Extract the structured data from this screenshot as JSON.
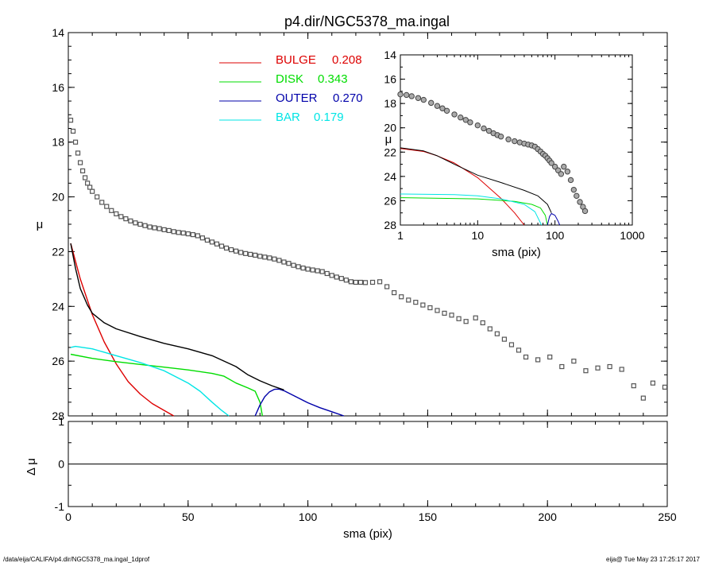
{
  "title": "p4.dir/NGC5378_ma.ingal",
  "footer": {
    "left": "/data/eija/CALIFA/p4.dir/NGC5378_ma.ingal_1dprof",
    "right": "eija@  Tue May 23 17:25:17 2017"
  },
  "legend": [
    {
      "name": "BULGE",
      "value": "0.208",
      "color": "#dd0000"
    },
    {
      "name": "DISK",
      "value": "0.343",
      "color": "#00dd00"
    },
    {
      "name": "OUTER",
      "value": "0.270",
      "color": "#0000aa"
    },
    {
      "name": "BAR",
      "value": "0.179",
      "color": "#00e5e5"
    }
  ],
  "chart_data": [
    {
      "type": "line",
      "panel": "main",
      "xlabel": "sma (pix)",
      "ylabel": "μ",
      "xlim": [
        0,
        250
      ],
      "ylim": [
        28,
        14
      ],
      "x_ticks": [
        "0",
        "50",
        "100",
        "150",
        "200",
        "250"
      ],
      "y_ticks": [
        "14",
        "16",
        "18",
        "20",
        "22",
        "24",
        "26",
        "28"
      ],
      "observed_points": [
        [
          1,
          17.2
        ],
        [
          2,
          17.6
        ],
        [
          3,
          18.0
        ],
        [
          4,
          18.4
        ],
        [
          5,
          18.75
        ],
        [
          6,
          19.05
        ],
        [
          7,
          19.3
        ],
        [
          8,
          19.5
        ],
        [
          9,
          19.65
        ],
        [
          10,
          19.8
        ],
        [
          12,
          20.0
        ],
        [
          14,
          20.2
        ],
        [
          16,
          20.35
        ],
        [
          18,
          20.5
        ],
        [
          20,
          20.62
        ],
        [
          22,
          20.72
        ],
        [
          24,
          20.8
        ],
        [
          26,
          20.88
        ],
        [
          28,
          20.95
        ],
        [
          30,
          21.0
        ],
        [
          32,
          21.05
        ],
        [
          34,
          21.1
        ],
        [
          36,
          21.13
        ],
        [
          38,
          21.16
        ],
        [
          40,
          21.2
        ],
        [
          42,
          21.23
        ],
        [
          44,
          21.27
        ],
        [
          46,
          21.3
        ],
        [
          48,
          21.32
        ],
        [
          50,
          21.35
        ],
        [
          52,
          21.38
        ],
        [
          54,
          21.42
        ],
        [
          56,
          21.5
        ],
        [
          58,
          21.58
        ],
        [
          60,
          21.65
        ],
        [
          62,
          21.72
        ],
        [
          64,
          21.8
        ],
        [
          66,
          21.87
        ],
        [
          68,
          21.93
        ],
        [
          70,
          21.98
        ],
        [
          72,
          22.03
        ],
        [
          74,
          22.07
        ],
        [
          76,
          22.1
        ],
        [
          78,
          22.13
        ],
        [
          80,
          22.17
        ],
        [
          82,
          22.2
        ],
        [
          84,
          22.23
        ],
        [
          86,
          22.27
        ],
        [
          88,
          22.32
        ],
        [
          90,
          22.38
        ],
        [
          92,
          22.43
        ],
        [
          94,
          22.5
        ],
        [
          96,
          22.55
        ],
        [
          98,
          22.6
        ],
        [
          100,
          22.64
        ],
        [
          102,
          22.67
        ],
        [
          104,
          22.7
        ],
        [
          106,
          22.73
        ],
        [
          108,
          22.8
        ],
        [
          110,
          22.87
        ],
        [
          112,
          22.93
        ],
        [
          114,
          22.98
        ],
        [
          116,
          23.04
        ],
        [
          118,
          23.1
        ],
        [
          120,
          23.12
        ],
        [
          122,
          23.12
        ],
        [
          124,
          23.13
        ],
        [
          127,
          23.12
        ],
        [
          130,
          23.1
        ],
        [
          133,
          23.28
        ],
        [
          136,
          23.5
        ],
        [
          139,
          23.65
        ],
        [
          142,
          23.77
        ],
        [
          145,
          23.85
        ],
        [
          148,
          23.95
        ],
        [
          151,
          24.05
        ],
        [
          154,
          24.15
        ],
        [
          157,
          24.25
        ],
        [
          160,
          24.32
        ],
        [
          163,
          24.45
        ],
        [
          166,
          24.55
        ],
        [
          170,
          24.42
        ],
        [
          173,
          24.6
        ],
        [
          176,
          24.82
        ],
        [
          179,
          25.0
        ],
        [
          182,
          25.2
        ],
        [
          185,
          25.4
        ],
        [
          188,
          25.6
        ],
        [
          191,
          25.85
        ],
        [
          196,
          25.95
        ],
        [
          201,
          25.85
        ],
        [
          206,
          26.2
        ],
        [
          211,
          26.0
        ],
        [
          216,
          26.35
        ],
        [
          221,
          26.25
        ],
        [
          226,
          26.2
        ],
        [
          231,
          26.3
        ],
        [
          236,
          26.9
        ],
        [
          240,
          27.35
        ],
        [
          244,
          26.8
        ],
        [
          249,
          26.95
        ]
      ],
      "series": [
        {
          "name": "BULGE",
          "x": [
            1,
            5,
            10,
            15,
            20,
            25,
            30,
            35,
            40,
            44
          ],
          "y": [
            21.7,
            23.0,
            24.3,
            25.3,
            26.1,
            26.75,
            27.2,
            27.55,
            27.8,
            28.0
          ]
        },
        {
          "name": "DISK",
          "x": [
            1,
            10,
            20,
            30,
            40,
            50,
            60,
            65,
            70,
            75,
            78,
            80,
            81
          ],
          "y": [
            25.75,
            25.9,
            26.02,
            26.12,
            26.22,
            26.32,
            26.45,
            26.55,
            26.8,
            26.98,
            27.1,
            27.5,
            28.0
          ]
        },
        {
          "name": "OUTER",
          "x": [
            78,
            80,
            82,
            84,
            86,
            88,
            90,
            95,
            100,
            105,
            110,
            115
          ],
          "y": [
            28.0,
            27.6,
            27.3,
            27.12,
            27.03,
            27.02,
            27.08,
            27.3,
            27.52,
            27.7,
            27.85,
            28.0
          ]
        },
        {
          "name": "BAR",
          "x": [
            1,
            3,
            10,
            20,
            30,
            40,
            50,
            55,
            60,
            64,
            67
          ],
          "y": [
            25.5,
            25.46,
            25.55,
            25.8,
            26.05,
            26.35,
            26.8,
            27.1,
            27.5,
            27.8,
            28.0
          ]
        },
        {
          "name": "",
          "x": [
            1,
            3,
            5,
            8,
            10,
            15,
            20,
            30,
            40,
            50,
            60,
            70,
            75,
            80,
            85,
            90
          ],
          "y": [
            21.7,
            22.6,
            23.35,
            23.95,
            24.25,
            24.6,
            24.82,
            25.1,
            25.35,
            25.55,
            25.8,
            26.2,
            26.5,
            26.72,
            26.9,
            27.05
          ]
        }
      ]
    },
    {
      "type": "line",
      "panel": "residual",
      "xlabel": "",
      "ylabel": "Δ μ",
      "xlim": [
        0,
        250
      ],
      "ylim": [
        -1,
        1
      ],
      "y_ticks": [
        "1",
        "0",
        "-1"
      ],
      "series": [
        {
          "name": "",
          "x": [
            0,
            250
          ],
          "y": [
            0,
            0
          ]
        }
      ]
    },
    {
      "type": "line",
      "panel": "inset",
      "xscale": "log",
      "xlabel": "sma (pix)",
      "ylabel": "μ",
      "xlim": [
        1,
        1000
      ],
      "ylim": [
        28,
        14
      ],
      "x_ticks": [
        "1",
        "10",
        "100",
        "1000"
      ],
      "y_ticks": [
        "14",
        "16",
        "18",
        "20",
        "22",
        "24",
        "26",
        "28"
      ],
      "observed_points": [
        [
          1,
          17.25
        ],
        [
          1.2,
          17.3
        ],
        [
          1.4,
          17.4
        ],
        [
          1.7,
          17.55
        ],
        [
          2,
          17.7
        ],
        [
          2.5,
          17.95
        ],
        [
          3,
          18.2
        ],
        [
          3.5,
          18.4
        ],
        [
          4,
          18.6
        ],
        [
          5,
          18.9
        ],
        [
          6,
          19.15
        ],
        [
          7,
          19.35
        ],
        [
          8,
          19.55
        ],
        [
          10,
          19.8
        ],
        [
          12,
          20.05
        ],
        [
          14,
          20.25
        ],
        [
          16,
          20.45
        ],
        [
          18,
          20.6
        ],
        [
          20,
          20.72
        ],
        [
          25,
          20.95
        ],
        [
          30,
          21.1
        ],
        [
          35,
          21.2
        ],
        [
          40,
          21.3
        ],
        [
          45,
          21.38
        ],
        [
          50,
          21.45
        ],
        [
          55,
          21.55
        ],
        [
          60,
          21.75
        ],
        [
          65,
          21.95
        ],
        [
          70,
          22.15
        ],
        [
          75,
          22.3
        ],
        [
          80,
          22.5
        ],
        [
          85,
          22.7
        ],
        [
          90,
          22.9
        ],
        [
          100,
          23.2
        ],
        [
          110,
          23.5
        ],
        [
          120,
          23.8
        ],
        [
          130,
          23.2
        ],
        [
          145,
          23.6
        ],
        [
          160,
          24.3
        ],
        [
          175,
          25.1
        ],
        [
          190,
          25.6
        ],
        [
          210,
          26.1
        ],
        [
          230,
          26.5
        ],
        [
          245,
          26.85
        ]
      ],
      "series": [
        {
          "name": "BULGE",
          "x": [
            1,
            2,
            3,
            5,
            10,
            20,
            30,
            40
          ],
          "y": [
            21.7,
            21.95,
            22.3,
            22.9,
            24.1,
            25.8,
            27.0,
            28.0
          ]
        },
        {
          "name": "DISK",
          "x": [
            1,
            10,
            30,
            50,
            65,
            75,
            80
          ],
          "y": [
            25.75,
            25.85,
            26.05,
            26.3,
            26.6,
            27.2,
            28.0
          ]
        },
        {
          "name": "OUTER",
          "x": [
            80,
            85,
            90,
            100,
            110,
            115
          ],
          "y": [
            28.0,
            27.3,
            27.05,
            27.2,
            27.7,
            28.0
          ]
        },
        {
          "name": "BAR",
          "x": [
            1,
            5,
            10,
            20,
            40,
            55,
            67
          ],
          "y": [
            25.45,
            25.5,
            25.6,
            25.85,
            26.3,
            26.9,
            28.0
          ]
        },
        {
          "name": "",
          "x": [
            1,
            2,
            3,
            5,
            10,
            20,
            40,
            60,
            80,
            90
          ],
          "y": [
            21.65,
            21.9,
            22.3,
            23.0,
            23.9,
            24.5,
            25.15,
            25.6,
            26.3,
            27.0
          ]
        }
      ]
    }
  ]
}
